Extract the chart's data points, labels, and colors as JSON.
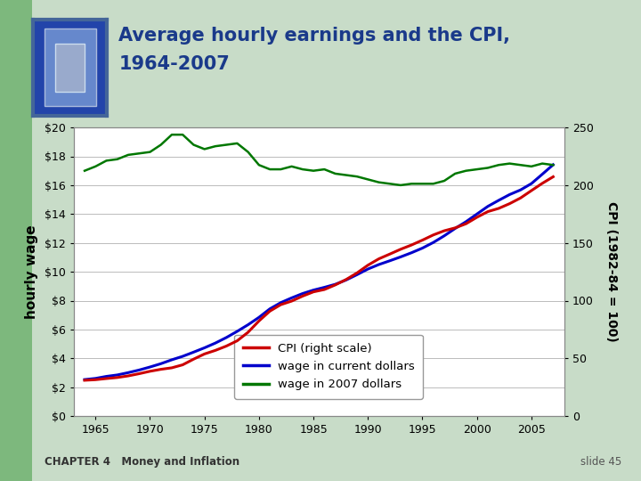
{
  "title_line1": "Average hourly earnings and the CPI,",
  "title_line2": "1964-2007",
  "title_color": "#1a3a8a",
  "ylabel_left": "hourly wage",
  "ylabel_right": "CPI (1982-84 = 100)",
  "left_ylim": [
    0,
    20
  ],
  "right_ylim": [
    0,
    250
  ],
  "left_yticks": [
    0,
    2,
    4,
    6,
    8,
    10,
    12,
    14,
    16,
    18,
    20
  ],
  "right_yticks": [
    0,
    50,
    100,
    150,
    200,
    250
  ],
  "left_yticklabels": [
    "$0",
    "$2",
    "$4",
    "$6",
    "$8",
    "$10",
    "$12",
    "$14",
    "$16",
    "$18",
    "$20"
  ],
  "right_yticklabels": [
    "0",
    "50",
    "100",
    "150",
    "200",
    "250"
  ],
  "xticks": [
    1965,
    1970,
    1975,
    1980,
    1985,
    1990,
    1995,
    2000,
    2005
  ],
  "xlim": [
    1963.0,
    2008.0
  ],
  "years": [
    1964,
    1965,
    1966,
    1967,
    1968,
    1969,
    1970,
    1971,
    1972,
    1973,
    1974,
    1975,
    1976,
    1977,
    1978,
    1979,
    1980,
    1981,
    1982,
    1983,
    1984,
    1985,
    1986,
    1987,
    1988,
    1989,
    1990,
    1991,
    1992,
    1993,
    1994,
    1995,
    1996,
    1997,
    1998,
    1999,
    2000,
    2001,
    2002,
    2003,
    2004,
    2005,
    2006,
    2007
  ],
  "cpi": [
    31.0,
    31.5,
    32.5,
    33.4,
    34.8,
    36.7,
    38.8,
    40.5,
    41.8,
    44.4,
    49.3,
    53.8,
    56.9,
    60.6,
    65.2,
    72.6,
    82.4,
    90.9,
    96.5,
    99.6,
    103.9,
    107.6,
    109.6,
    113.6,
    118.3,
    124.0,
    130.7,
    136.2,
    140.3,
    144.5,
    148.2,
    152.4,
    156.9,
    160.5,
    163.0,
    166.6,
    172.2,
    177.1,
    179.9,
    184.0,
    188.9,
    195.3,
    201.6,
    207.3
  ],
  "wage_current": [
    2.53,
    2.61,
    2.75,
    2.85,
    3.01,
    3.19,
    3.4,
    3.63,
    3.9,
    4.14,
    4.43,
    4.73,
    5.06,
    5.44,
    5.87,
    6.33,
    6.84,
    7.43,
    7.86,
    8.19,
    8.49,
    8.73,
    8.92,
    9.13,
    9.43,
    9.8,
    10.19,
    10.5,
    10.76,
    11.03,
    11.32,
    11.64,
    12.03,
    12.49,
    13.0,
    13.47,
    14.0,
    14.53,
    14.95,
    15.35,
    15.67,
    16.11,
    16.76,
    17.42
  ],
  "wage_2007": [
    17.0,
    17.3,
    17.7,
    17.8,
    18.1,
    18.2,
    18.3,
    18.8,
    19.5,
    19.5,
    18.8,
    18.5,
    18.7,
    18.8,
    18.9,
    18.3,
    17.4,
    17.1,
    17.1,
    17.3,
    17.1,
    17.0,
    17.1,
    16.8,
    16.7,
    16.6,
    16.4,
    16.2,
    16.1,
    16.0,
    16.1,
    16.1,
    16.1,
    16.3,
    16.8,
    17.0,
    17.1,
    17.2,
    17.4,
    17.5,
    17.4,
    17.3,
    17.5,
    17.4
  ],
  "cpi_color": "#CC0000",
  "wage_current_color": "#0000CC",
  "wage_2007_color": "#007700",
  "legend_labels": [
    "CPI (right scale)",
    "wage in current dollars",
    "wage in 2007 dollars"
  ],
  "bg_color": "#FFFFFF",
  "grid_color": "#BBBBBB",
  "chapter_text": "CHAPTER 4   Money and Inflation",
  "slide_text": "slide 45",
  "sidebar_color": "#7DB87D",
  "bg_light_green": "#C8DCC8",
  "title_fontsize": 15
}
